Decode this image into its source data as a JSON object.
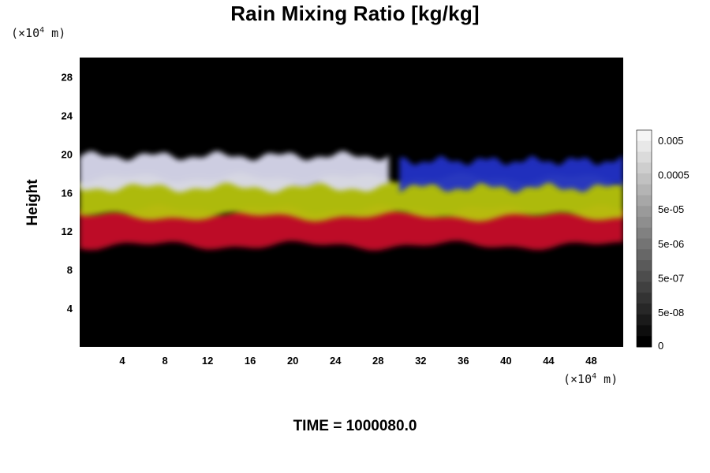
{
  "chart_data": {
    "type": "heatmap",
    "title": "Rain Mixing Ratio [kg/kg]",
    "ylabel": "Height",
    "y_unit": "(×10",
    "x_unit": "(×10",
    "unit_exp": "4",
    "unit_tail": " m)",
    "x_ticks": [
      4,
      8,
      12,
      16,
      20,
      24,
      28,
      32,
      36,
      40,
      44,
      48
    ],
    "y_ticks": [
      4,
      8,
      12,
      16,
      20,
      24,
      28
    ],
    "xlim": [
      0,
      51
    ],
    "ylim": [
      0,
      30
    ],
    "colorbar_labels": [
      "0.005",
      "0.0005",
      "5e-05",
      "5e-06",
      "5e-07",
      "5e-08",
      "0"
    ],
    "layers": [
      {
        "color": "#c8102a",
        "x": [
          0,
          51
        ],
        "y": [
          10.5,
          14.2
        ]
      },
      {
        "color": "#b7c40c",
        "x": [
          0,
          51
        ],
        "y": [
          13.5,
          17.5
        ]
      },
      {
        "color": "#d9d9ee",
        "x": [
          0,
          29
        ],
        "y": [
          16.5,
          19.8
        ]
      },
      {
        "color": "#2230c8",
        "x": [
          30,
          51
        ],
        "y": [
          16.5,
          19.3
        ]
      }
    ],
    "footer": "TIME = 1000080.0"
  }
}
